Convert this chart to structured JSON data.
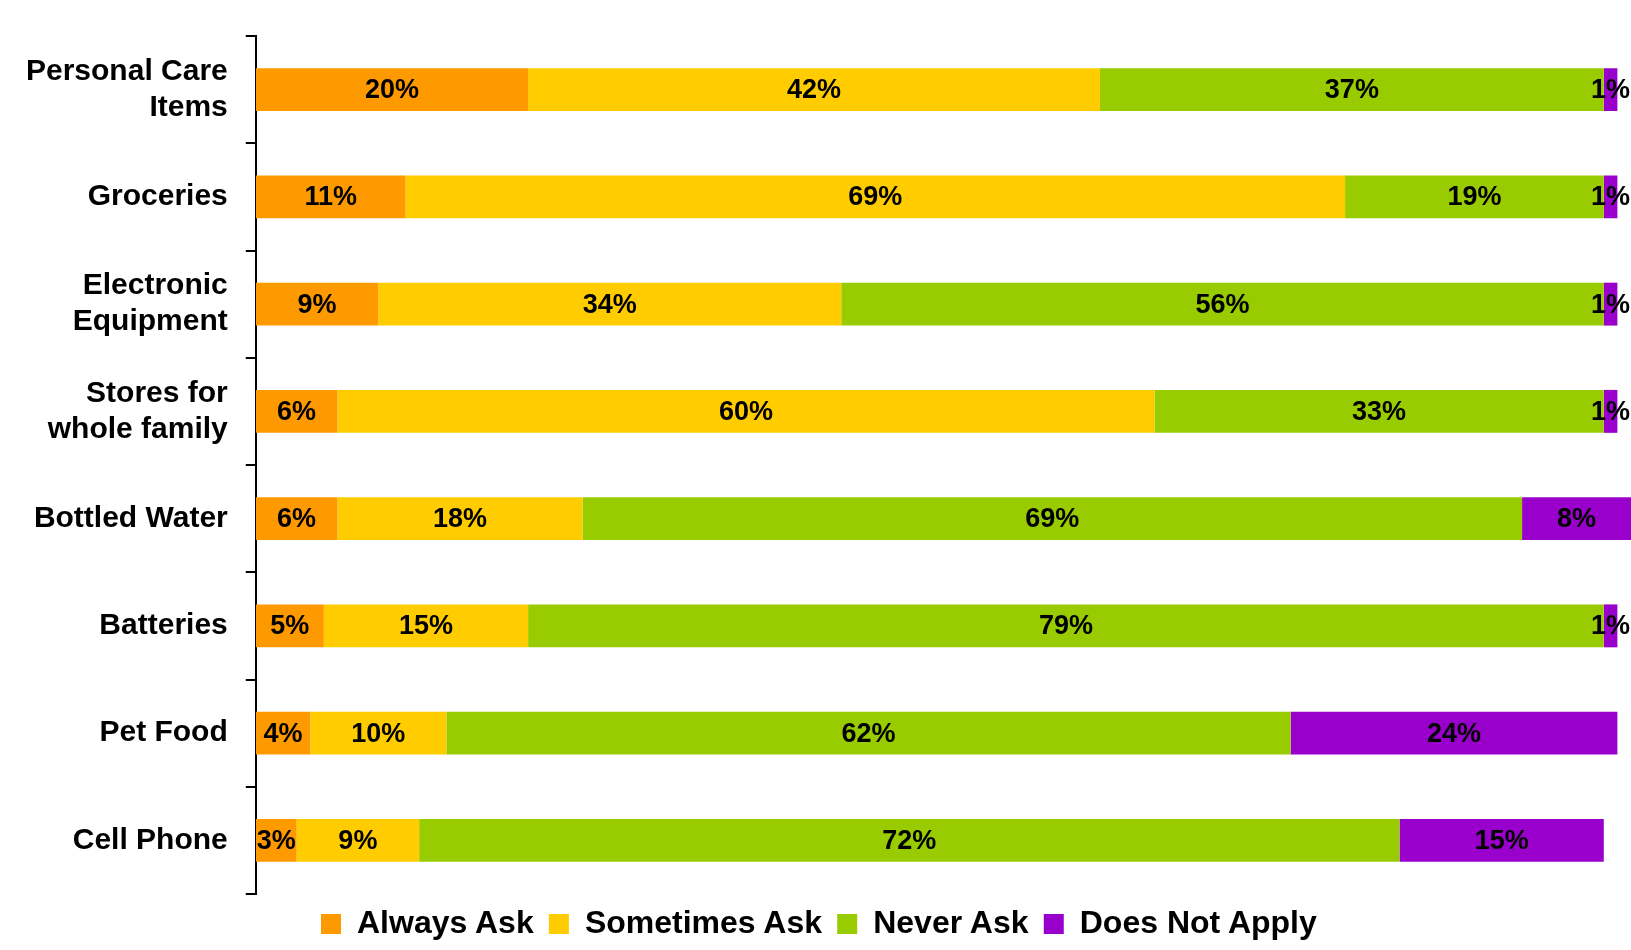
{
  "chart_data": {
    "type": "bar",
    "orientation": "horizontal",
    "stacked": true,
    "legend": "bottom",
    "grid": false,
    "tick_labels": "y",
    "categories": [
      "Personal Care Items",
      "Groceries",
      "Electronic Equipment",
      "Stores for whole family",
      "Bottled Water",
      "Batteries",
      "Pet Food",
      "Cell Phone"
    ],
    "series": [
      {
        "name": "Always Ask",
        "color": "#ff9900",
        "values": [
          20,
          11,
          9,
          6,
          6,
          5,
          4,
          3
        ],
        "value_labels": [
          "20%",
          "11%",
          "9%",
          "6%",
          "6%",
          "5%",
          "4%",
          "3%"
        ]
      },
      {
        "name": "Sometimes Ask",
        "color": "#ffcc00",
        "values": [
          42,
          69,
          34,
          60,
          18,
          15,
          10,
          9
        ],
        "value_labels": [
          "42%",
          "69%",
          "34%",
          "60%",
          "18%",
          "15%",
          "10%",
          "9%"
        ]
      },
      {
        "name": "Never Ask",
        "color": "#99cc00",
        "values": [
          37,
          19,
          56,
          33,
          69,
          79,
          62,
          72
        ],
        "value_labels": [
          "37%",
          "19%",
          "56%",
          "33%",
          "69%",
          "79%",
          "62%",
          "72%"
        ]
      },
      {
        "name": "Does Not Apply",
        "color": "#9900cc",
        "values": [
          1,
          1,
          1,
          1,
          8,
          1,
          24,
          15
        ],
        "value_labels": [
          "1%",
          "1%",
          "1%",
          "1%",
          "8%",
          "1%",
          "24%",
          "15%"
        ]
      }
    ]
  }
}
